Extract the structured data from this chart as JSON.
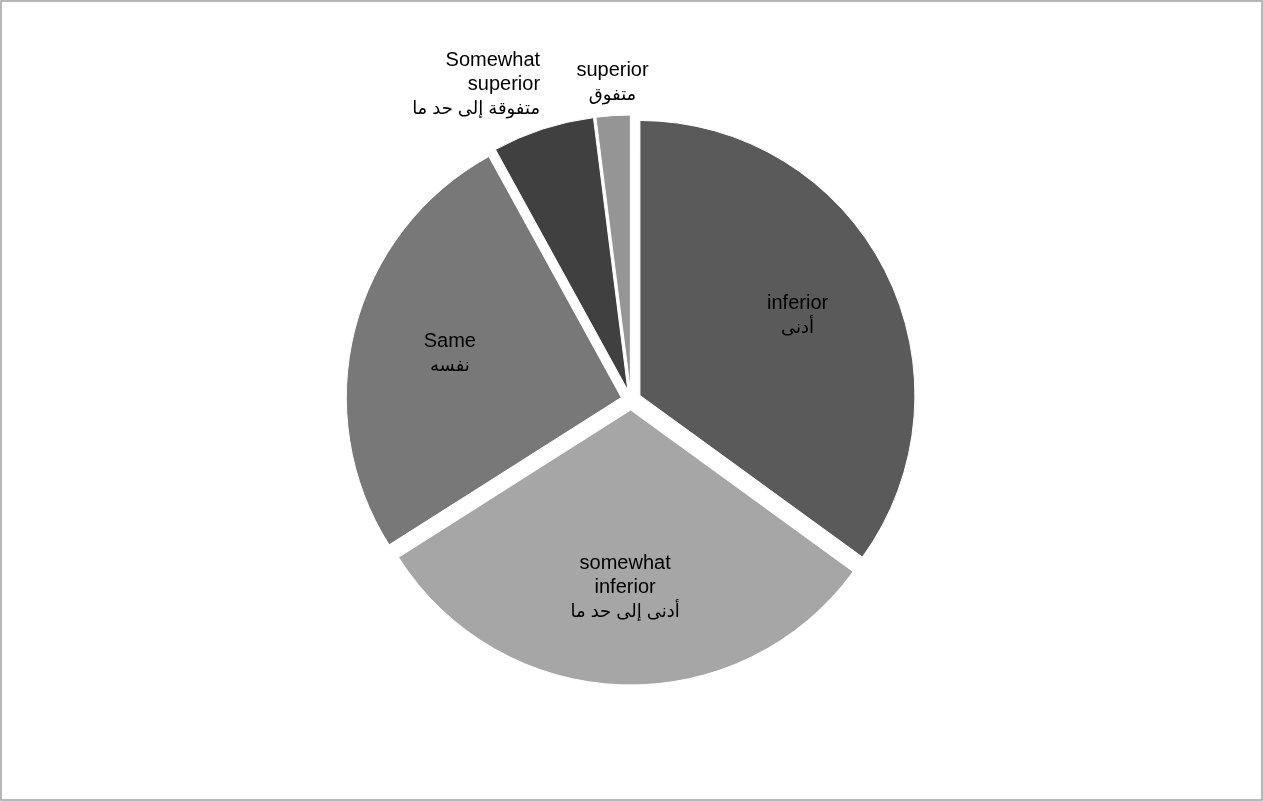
{
  "chart_data": {
    "type": "pie",
    "categories": [
      "inferior",
      "somewhat inferior",
      "Same",
      "Somewhat superior",
      "superior"
    ],
    "values": [
      35,
      31,
      26,
      6,
      2
    ],
    "colors": [
      "#5a5a5a",
      "#a6a6a6",
      "#787878",
      "#404040",
      "#959595"
    ],
    "annotations": [
      "أدنى",
      "أدنى إلى حد ما",
      "نفسه",
      "متفوقة إلى حد ما",
      "متفوق"
    ]
  }
}
